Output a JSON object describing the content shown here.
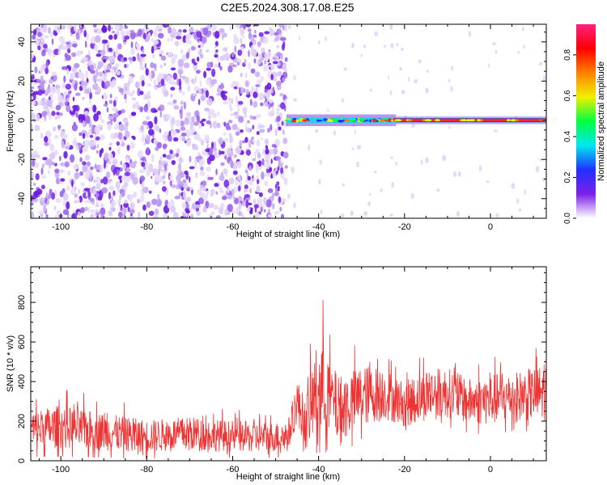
{
  "title": "C2E5.2024.308.17.08.E25",
  "chart_data": [
    {
      "type": "heatmap",
      "ylabel": "Frequency (Hz)",
      "xlabel": "Height of straight line (km)",
      "xlim": [
        -107,
        13
      ],
      "ylim": [
        -50,
        49
      ],
      "xticks": [
        -100,
        -80,
        -60,
        -40,
        -20,
        0
      ],
      "yticks": [
        -40,
        -20,
        0,
        20,
        40
      ],
      "colorbar": {
        "label": "Normalized spectral amplitude",
        "range": [
          0,
          0.95
        ],
        "ticks": [
          0.0,
          0.2,
          0.4,
          0.6,
          0.8
        ],
        "colormap": [
          "#ffffff",
          "#7b20e8",
          "#2230ff",
          "#00e8f0",
          "#00ff40",
          "#f0f000",
          "#ff8000",
          "#ff0000",
          "#ff2080"
        ]
      },
      "regions": [
        {
          "x": [
            -107,
            -47.5
          ],
          "y": [
            -50,
            49
          ],
          "amplitude": "scattered 0.0-0.2"
        },
        {
          "x": [
            -47.5,
            -22
          ],
          "y": [
            -2,
            2
          ],
          "amplitude": "0.2-0.9"
        },
        {
          "x": [
            -22,
            13
          ],
          "y": [
            -1,
            1
          ],
          "amplitude": "0.8-0.95"
        }
      ],
      "grid": false
    },
    {
      "type": "line",
      "ylabel": "SNR (10 * v/v)",
      "xlabel": "Height of straight line (km)",
      "xlim": [
        -107,
        13
      ],
      "ylim": [
        0,
        980
      ],
      "xticks": [
        -100,
        -80,
        -60,
        -40,
        -20,
        0
      ],
      "yticks": [
        0,
        200,
        400,
        600,
        800
      ],
      "series": [
        {
          "color": "#ee3333",
          "envelope": {
            "x": [
              -107,
              -100,
              -90,
              -80,
              -70,
              -60,
              -50,
              -47,
              -45,
              -43,
              -41,
              -39,
              -37,
              -35,
              -30,
              -25,
              -20,
              -15,
              -10,
              -5,
              0,
              5,
              10,
              13
            ],
            "low": [
              20,
              20,
              15,
              10,
              20,
              15,
              15,
              10,
              150,
              10,
              20,
              10,
              100,
              20,
              110,
              160,
              130,
              150,
              170,
              140,
              130,
              150,
              150,
              140
            ],
            "high": [
              380,
              420,
              360,
              310,
              330,
              300,
              290,
              320,
              560,
              460,
              840,
              960,
              680,
              650,
              680,
              640,
              540,
              640,
              630,
              560,
              600,
              600,
              640,
              680
            ]
          }
        }
      ],
      "grid": false
    }
  ]
}
